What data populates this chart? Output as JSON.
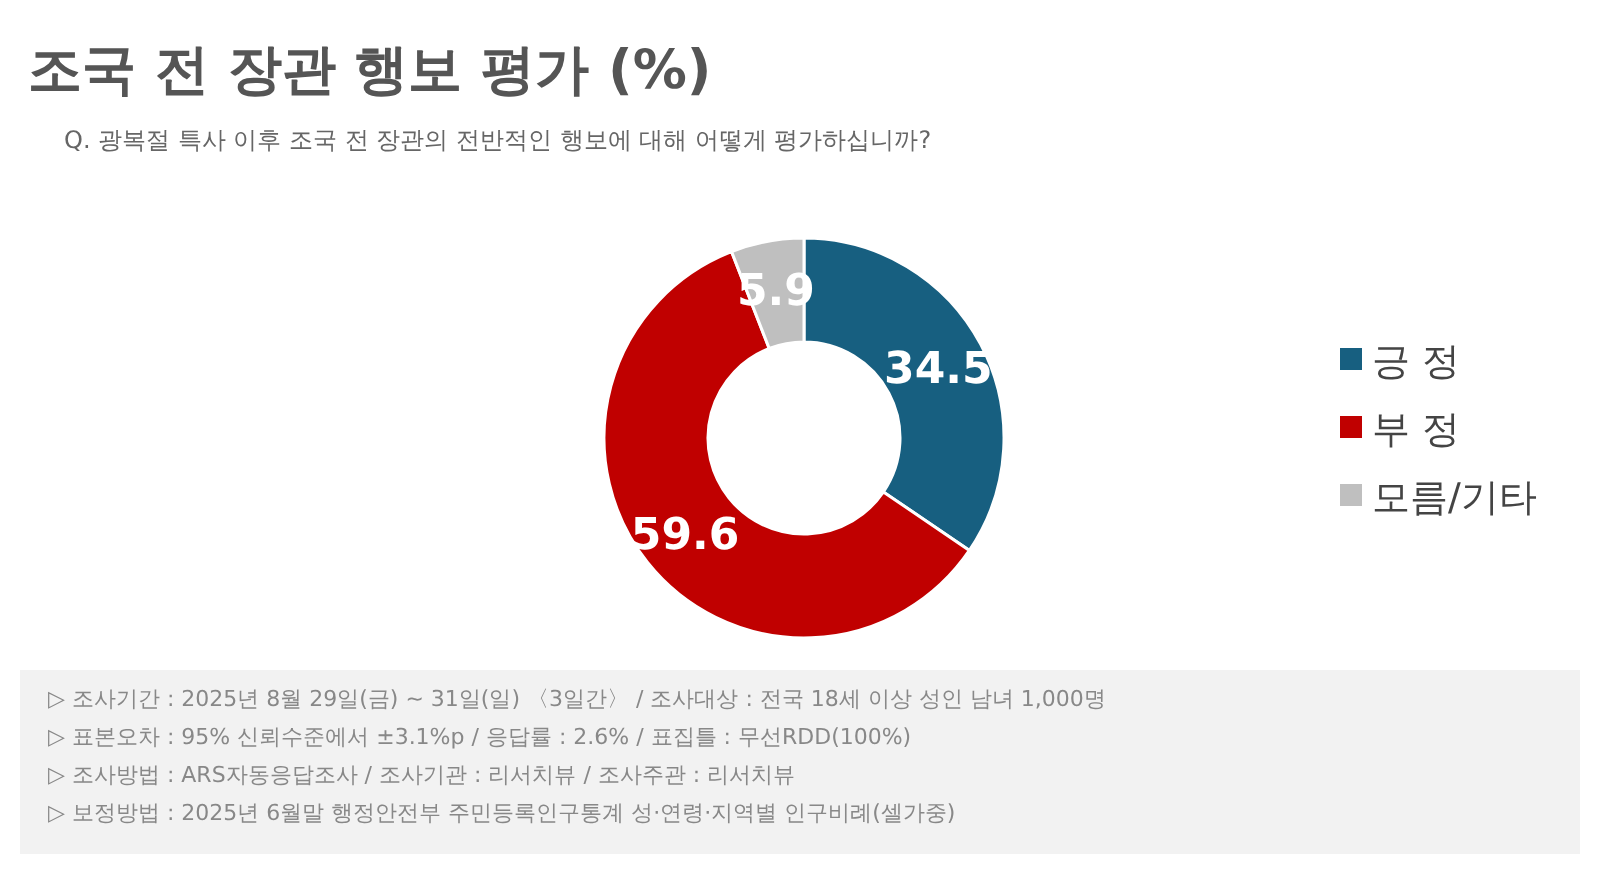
{
  "chart_data": {
    "type": "donut",
    "title": "조국 전 장관 행보 평가 (%)",
    "subtitle": "Q. 광복절 특사 이후 조국 전 장관의 전반적인 행보에 대해 어떻게 평가하십니까?",
    "categories": [
      "긍 정",
      "부 정",
      "모름/기타"
    ],
    "values": [
      34.5,
      59.6,
      5.9
    ],
    "colors": [
      "#175f80",
      "#c00000",
      "#bfbfbf"
    ],
    "data_labels": true,
    "legend": "right",
    "annotations": [
      "▷ 조사기간 : 2025년 8월 29일(금) ~ 31일(일) 〈3일간〉 / 조사대상 : 전국 18세 이상 성인 남녀 1,000명",
      "▷ 표본오차 : 95% 신뢰수준에서 ±3.1%p / 응답률 : 2.6% / 표집틀 : 무선RDD(100%)",
      "▷ 조사방법 : ARS자동응답조사 / 조사기관 : 리서치뷰 / 조사주관 : 리서치뷰",
      "▷ 보정방법 : 2025년 6월말 행정안전부 주민등록인구통계 성·연령·지역별 인구비례(셀가중)"
    ]
  }
}
